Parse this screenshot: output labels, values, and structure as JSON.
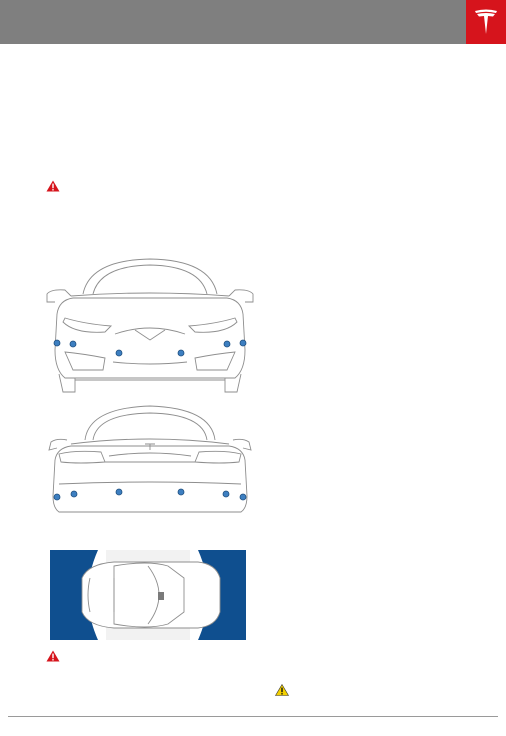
{
  "colors": {
    "header_bar": "#7f7f7f",
    "brand_red": "#d6141c",
    "warning_red": "#d6141c",
    "caution_yellow": "#f4d100",
    "sensor_blue": "#3d7fc1",
    "sensor_zone_blue": "#0f4f8f"
  },
  "icons": {
    "brand_logo": "tesla-logo-icon",
    "warning_1": "warning-triangle-icon",
    "warning_2": "warning-triangle-icon",
    "caution": "caution-triangle-icon"
  },
  "figures": {
    "front_view": {
      "subject": "vehicle-front",
      "sensor_count": 6
    },
    "rear_view": {
      "subject": "vehicle-rear",
      "sensor_count": 6
    },
    "top_view": {
      "subject": "vehicle-top",
      "sensor_zones": 2
    }
  }
}
